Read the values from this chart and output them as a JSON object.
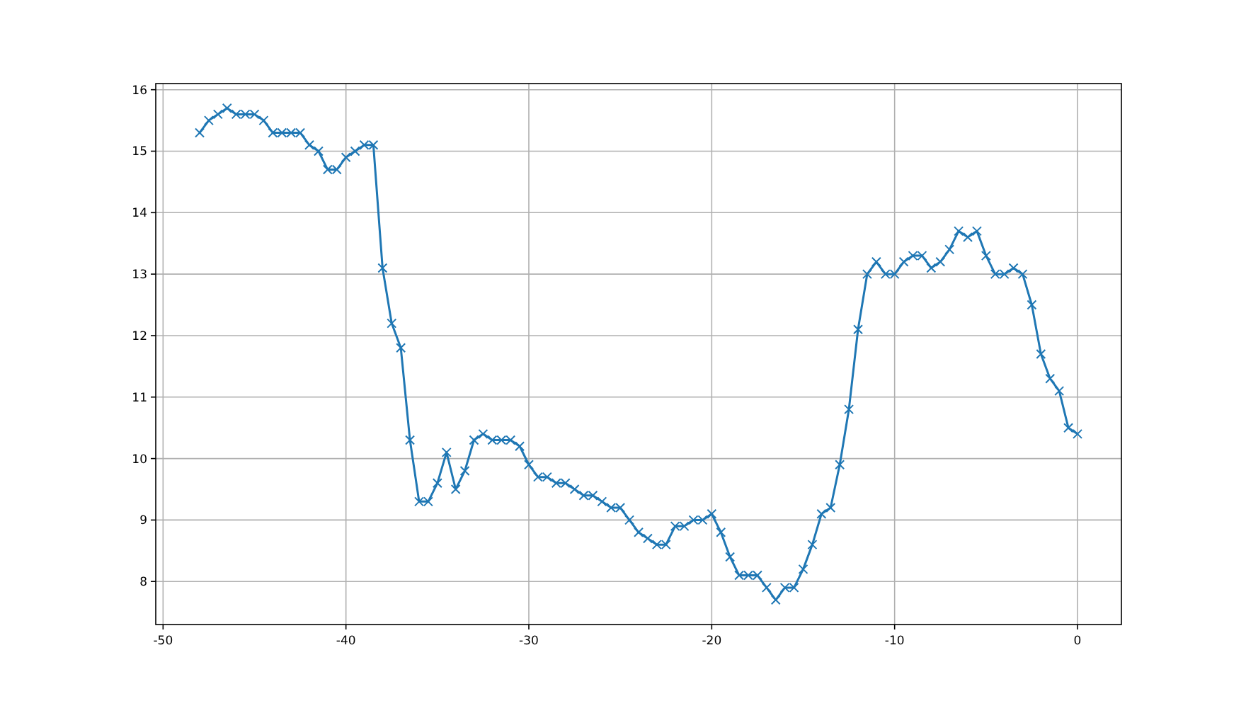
{
  "chart_data": {
    "type": "line",
    "x": [
      -48,
      -47.5,
      -47,
      -46.5,
      -46,
      -45.5,
      -45,
      -44.5,
      -44,
      -43.5,
      -43,
      -42.5,
      -42,
      -41.5,
      -41,
      -40.5,
      -40,
      -39.5,
      -39,
      -38.5,
      -38,
      -37.5,
      -37,
      -36.5,
      -36,
      -35.5,
      -35,
      -34.5,
      -34,
      -33.5,
      -33,
      -32.5,
      -32,
      -31.5,
      -31,
      -30.5,
      -30,
      -29.5,
      -29,
      -28.5,
      -28,
      -27.5,
      -27,
      -26.5,
      -26,
      -25.5,
      -25,
      -24.5,
      -24,
      -23.5,
      -23,
      -22.5,
      -22,
      -21.5,
      -21,
      -20.5,
      -20,
      -19.5,
      -19,
      -18.5,
      -18,
      -17.5,
      -17,
      -16.5,
      -16,
      -15.5,
      -15,
      -14.5,
      -14,
      -13.5,
      -13,
      -12.5,
      -12,
      -11.5,
      -11,
      -10.5,
      -10,
      -9.5,
      -9,
      -8.5,
      -8,
      -7.5,
      -7,
      -6.5,
      -6,
      -5.5,
      -5,
      -4.5,
      -4,
      -3.5,
      -3,
      -2.5,
      -2,
      -1.5,
      -1,
      -0.5,
      0
    ],
    "series": [
      {
        "color": "#1f77b4",
        "values": [
          15.3,
          15.5,
          15.6,
          15.7,
          15.6,
          15.6,
          15.6,
          15.5,
          15.3,
          15.3,
          15.3,
          15.3,
          15.1,
          15.0,
          14.7,
          14.7,
          14.9,
          15.0,
          15.1,
          15.1,
          13.1,
          12.2,
          11.8,
          10.3,
          9.3,
          9.3,
          9.6,
          10.1,
          9.5,
          9.8,
          10.3,
          10.4,
          10.3,
          10.3,
          10.3,
          10.2,
          9.9,
          9.7,
          9.7,
          9.6,
          9.6,
          9.5,
          9.4,
          9.4,
          9.3,
          9.2,
          9.2,
          9.0,
          8.8,
          8.7,
          8.6,
          8.6,
          8.9,
          8.9,
          9.0,
          9.0,
          9.1,
          8.8,
          8.4,
          8.1,
          8.1,
          8.1,
          7.9,
          7.7,
          7.9,
          7.9,
          8.2,
          8.6,
          9.1,
          9.2,
          9.9,
          10.8,
          12.1,
          13.0,
          13.2,
          13.0,
          13.0,
          13.2,
          13.3,
          13.3,
          13.1,
          13.2,
          13.4,
          13.7,
          13.6,
          13.7,
          13.3,
          13.0,
          13.0,
          13.1,
          13.0,
          12.5,
          11.7,
          11.3,
          11.1,
          10.5,
          10.4
        ]
      }
    ],
    "xlim": [
      -50.4,
      2.4
    ],
    "xticks": [
      -50,
      -40,
      -30,
      -20,
      -10,
      0
    ],
    "ylim": [
      7.3,
      16.1
    ],
    "yticks": [
      8,
      9,
      10,
      11,
      12,
      13,
      14,
      15,
      16
    ],
    "grid": true,
    "marker": "cross",
    "line_style": "solid"
  }
}
